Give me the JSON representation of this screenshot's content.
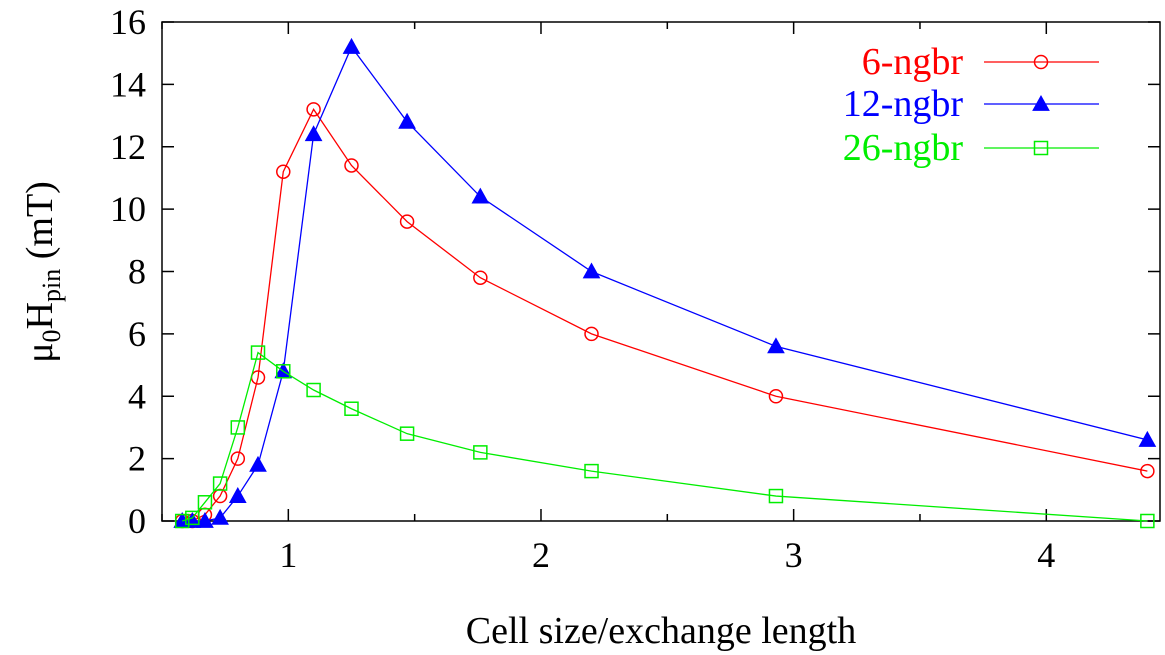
{
  "chart_data": {
    "type": "line",
    "xlabel": "Cell size/exchange length",
    "ylabel": {
      "mu": "μ",
      "mu_sub": "0",
      "H": "H",
      "H_sub": "pin",
      "unit": " (mT)"
    },
    "xlim": [
      0.5,
      4.45
    ],
    "ylim": [
      0,
      16
    ],
    "x_ticks": [
      1,
      2,
      3,
      4
    ],
    "x_tick_labels": [
      "1",
      "2",
      "3",
      "4"
    ],
    "x_minor_ticks": [
      0.5,
      1.5,
      2.5,
      3.5
    ],
    "y_ticks": [
      0,
      2,
      4,
      6,
      8,
      10,
      12,
      14,
      16
    ],
    "y_tick_labels": [
      "0",
      "2",
      "4",
      "6",
      "8",
      "10",
      "12",
      "14",
      "16"
    ],
    "grid": false,
    "legend_position": "top-right",
    "series": [
      {
        "name": "6-ngbr",
        "color": "#ff0000",
        "marker": "open-circle",
        "x": [
          0.58,
          0.62,
          0.67,
          0.73,
          0.8,
          0.88,
          0.98,
          1.1,
          1.25,
          1.47,
          1.76,
          2.2,
          2.93,
          4.4
        ],
        "y": [
          0,
          0,
          0.2,
          0.8,
          2.0,
          4.6,
          11.2,
          13.2,
          11.4,
          9.6,
          7.8,
          6.0,
          4.0,
          1.6
        ]
      },
      {
        "name": "12-ngbr",
        "color": "#0000ff",
        "marker": "filled-triangle",
        "x": [
          0.58,
          0.62,
          0.67,
          0.73,
          0.8,
          0.88,
          0.98,
          1.1,
          1.25,
          1.47,
          1.76,
          2.2,
          2.93,
          4.4
        ],
        "y": [
          0,
          0,
          0,
          0.1,
          0.8,
          1.8,
          4.8,
          12.4,
          15.2,
          12.8,
          10.4,
          8.0,
          5.6,
          2.6
        ]
      },
      {
        "name": "26-ngbr",
        "color": "#00ee00",
        "marker": "open-square",
        "x": [
          0.58,
          0.62,
          0.67,
          0.73,
          0.8,
          0.88,
          0.98,
          1.1,
          1.25,
          1.47,
          1.76,
          2.2,
          2.93,
          4.4
        ],
        "y": [
          0,
          0.1,
          0.6,
          1.2,
          3.0,
          5.4,
          4.8,
          4.2,
          3.6,
          2.8,
          2.2,
          1.6,
          0.8,
          0
        ]
      }
    ]
  }
}
